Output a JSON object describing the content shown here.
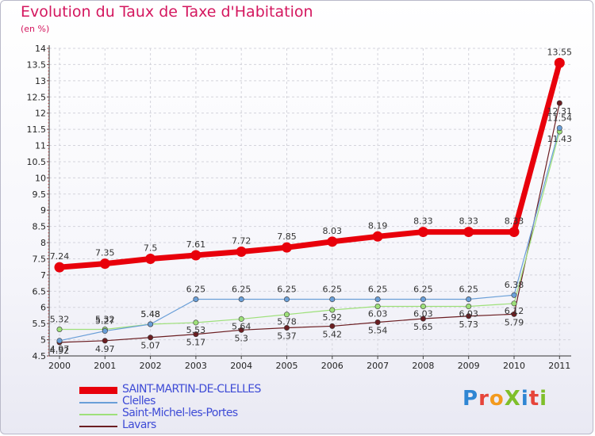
{
  "header": {
    "title": "Evolution du Taux de Taxe d'Habitation",
    "unit": "(en %)"
  },
  "logo": {
    "text": "ProXiti",
    "colors": [
      "#2f86d3",
      "#e6443a",
      "#f39a1d",
      "#7fbf2a",
      "#2f86d3",
      "#e6443a",
      "#7fbf2a"
    ]
  },
  "chart_data": {
    "type": "line",
    "title": "Evolution du Taux de Taxe d'Habitation",
    "ylabel": "(en %)",
    "xlabel": "",
    "categories": [
      "2000",
      "2001",
      "2002",
      "2003",
      "2004",
      "2005",
      "2006",
      "2007",
      "2008",
      "2009",
      "2010",
      "2011"
    ],
    "ylim": [
      4.5,
      14
    ],
    "yticks": [
      4.5,
      5,
      5.5,
      6,
      6.5,
      7,
      7.5,
      8,
      8.5,
      9,
      9.5,
      10,
      10.5,
      11,
      11.5,
      12,
      12.5,
      13,
      13.5,
      14
    ],
    "ytick_labels": [
      "4.5",
      "5",
      "5.5",
      "6",
      "6.5",
      "7",
      "7.5",
      "8",
      "8.5",
      "9",
      "9.5",
      "10",
      "10.5",
      "11",
      "11.5",
      "12",
      "12.5",
      "13",
      "13.5",
      "14"
    ],
    "grid": true,
    "legend_position": "bottom-left",
    "series": [
      {
        "name": "SAINT-MARTIN-DE-CLELLES",
        "color": "#e8000b",
        "values": [
          7.24,
          7.35,
          7.5,
          7.61,
          7.72,
          7.85,
          8.03,
          8.19,
          8.33,
          8.33,
          8.33,
          13.55
        ],
        "labels": [
          "7.24",
          "7.35",
          "7.5",
          "7.61",
          "7.72",
          "7.85",
          "8.03",
          "8.19",
          "8.33",
          "8.33",
          "8.33",
          "13.55"
        ]
      },
      {
        "name": "Clelles",
        "color": "#6a9fd8",
        "values": [
          4.97,
          5.27,
          5.48,
          6.25,
          6.25,
          6.25,
          6.25,
          6.25,
          6.25,
          6.25,
          6.38,
          11.54
        ],
        "labels": [
          "4.97",
          "5.27",
          "5.48",
          "6.25",
          "6.25",
          "6.25",
          "6.25",
          "6.25",
          "6.25",
          "6.25",
          "6.38",
          "11.54"
        ]
      },
      {
        "name": "Saint-Michel-les-Portes",
        "color": "#9ee07a",
        "values": [
          5.32,
          5.32,
          5.48,
          5.53,
          5.64,
          5.78,
          5.92,
          6.03,
          6.03,
          6.03,
          6.12,
          11.43
        ],
        "labels": [
          "5.32",
          "5.32",
          "5.48",
          "5.53",
          "5.64",
          "5.78",
          "5.92",
          "6.03",
          "6.03",
          "6.03",
          "6.12",
          "11.43"
        ]
      },
      {
        "name": "Lavars",
        "color": "#6b1e22",
        "values": [
          4.92,
          4.97,
          5.07,
          5.17,
          5.3,
          5.37,
          5.42,
          5.54,
          5.65,
          5.73,
          5.79,
          12.31
        ],
        "labels": [
          "4.92",
          "4.97",
          "5.07",
          "5.17",
          "5.3",
          "5.37",
          "5.42",
          "5.54",
          "5.65",
          "5.73",
          "5.79",
          "12.31"
        ]
      }
    ]
  }
}
